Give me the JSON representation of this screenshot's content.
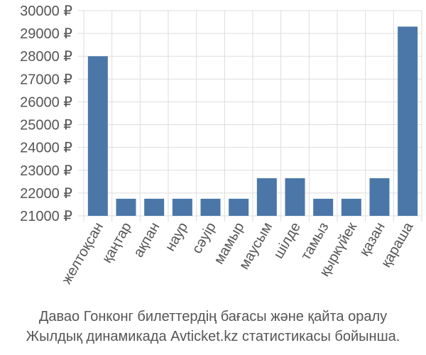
{
  "chart_data": {
    "type": "bar",
    "categories": [
      "желтоқсан",
      "қаңтар",
      "ақпан",
      "наур",
      "сәуір",
      "мамыр",
      "маусым",
      "шілде",
      "тамыз",
      "қыркүйек",
      "қазан",
      "қараша"
    ],
    "values": [
      28000,
      21750,
      21750,
      21750,
      21750,
      21750,
      22650,
      22650,
      21750,
      21750,
      22650,
      29300
    ],
    "yticks": [
      "21000 ₽",
      "22000 ₽",
      "23000 ₽",
      "24000 ₽",
      "25000 ₽",
      "26000 ₽",
      "27000 ₽",
      "28000 ₽",
      "29000 ₽",
      "30000 ₽"
    ],
    "ylim": [
      21000,
      30000
    ],
    "grid": true,
    "bar_color": "#4a77a8",
    "caption": [
      "Давао Гонконг билеттердің бағасы және қайта оралу",
      "Жылдық динамикада Avticket.kz статистикасы бойынша."
    ]
  }
}
